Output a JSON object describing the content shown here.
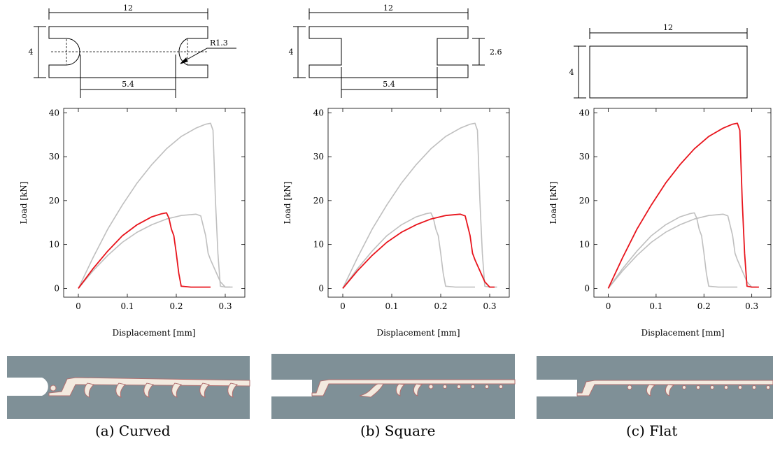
{
  "captions": [
    "(a) Curved",
    "(b) Square",
    "(c) Flat"
  ],
  "specimens": [
    {
      "name": "Curved",
      "dims": {
        "width": "12",
        "height": "4",
        "notch_spacing": "5.4",
        "radius": "R1.3"
      }
    },
    {
      "name": "Square",
      "dims": {
        "width": "12",
        "height": "4",
        "notch_spacing": "5.4",
        "notch_height": "2.6"
      }
    },
    {
      "name": "Flat",
      "dims": {
        "width": "12",
        "height": "4"
      }
    }
  ],
  "colors": {
    "highlight": "#e8141c",
    "other": "#bfbfbf",
    "specimen_fill": "#7f9097",
    "crack": "#f3eadf",
    "crack_edge": "#b07070"
  },
  "chart_data": [
    {
      "type": "line",
      "xlabel": "Displacement [mm]",
      "ylabel": "Load [kN]",
      "xlim": [
        -0.03,
        0.34
      ],
      "ylim": [
        -2,
        41
      ],
      "xticks": [
        0,
        0.1,
        0.2,
        0.3
      ],
      "xtick_labels": [
        "0",
        "0.1",
        "0.2",
        "0.3"
      ],
      "yticks": [
        0,
        10,
        20,
        30,
        40
      ],
      "ytick_labels": [
        "0",
        "10",
        "20",
        "30",
        "40"
      ],
      "highlight": 0,
      "series": [
        {
          "x": [
            0,
            0.03,
            0.06,
            0.09,
            0.12,
            0.15,
            0.17,
            0.18,
            0.185,
            0.19,
            0.195,
            0.2,
            0.205,
            0.21,
            0.23,
            0.27
          ],
          "y": [
            0,
            4.5,
            8.5,
            12,
            14.5,
            16.3,
            17,
            17.2,
            16,
            13.5,
            12,
            8,
            3.5,
            0.5,
            0.3,
            0.3
          ]
        },
        {
          "x": [
            0,
            0.03,
            0.06,
            0.09,
            0.12,
            0.15,
            0.18,
            0.21,
            0.24,
            0.25,
            0.26,
            0.265,
            0.27,
            0.28,
            0.29,
            0.3,
            0.31
          ],
          "y": [
            0,
            4,
            7.5,
            10.5,
            12.8,
            14.5,
            15.8,
            16.6,
            16.9,
            16.5,
            12,
            8,
            6.5,
            4,
            1.5,
            0.3,
            0.3
          ]
        },
        {
          "x": [
            0,
            0.03,
            0.06,
            0.09,
            0.12,
            0.15,
            0.18,
            0.21,
            0.24,
            0.26,
            0.27,
            0.275,
            0.28,
            0.285,
            0.29,
            0.3,
            0.315
          ],
          "y": [
            0,
            7,
            13.5,
            19,
            24,
            28.2,
            31.8,
            34.6,
            36.5,
            37.4,
            37.6,
            36,
            20,
            8,
            0.5,
            0.3,
            0.3
          ]
        }
      ]
    },
    {
      "type": "line",
      "xlabel": "Displacement [mm]",
      "ylabel": "Load [kN]",
      "xlim": [
        -0.03,
        0.34
      ],
      "ylim": [
        -2,
        41
      ],
      "xticks": [
        0,
        0.1,
        0.2,
        0.3
      ],
      "xtick_labels": [
        "0",
        "0.1",
        "0.2",
        "0.3"
      ],
      "yticks": [
        0,
        10,
        20,
        30,
        40
      ],
      "ytick_labels": [
        "0",
        "10",
        "20",
        "30",
        "40"
      ],
      "highlight": 1,
      "series": [
        {
          "x": [
            0,
            0.03,
            0.06,
            0.09,
            0.12,
            0.15,
            0.17,
            0.18,
            0.185,
            0.19,
            0.195,
            0.2,
            0.205,
            0.21,
            0.23,
            0.27
          ],
          "y": [
            0,
            4.5,
            8.5,
            12,
            14.5,
            16.3,
            17,
            17.2,
            16,
            13.5,
            12,
            8,
            3.5,
            0.5,
            0.3,
            0.3
          ]
        },
        {
          "x": [
            0,
            0.03,
            0.06,
            0.09,
            0.12,
            0.15,
            0.18,
            0.21,
            0.24,
            0.25,
            0.26,
            0.265,
            0.27,
            0.28,
            0.29,
            0.3,
            0.31
          ],
          "y": [
            0,
            4,
            7.5,
            10.5,
            12.8,
            14.5,
            15.8,
            16.6,
            16.9,
            16.5,
            12,
            8,
            6.5,
            4,
            1.5,
            0.3,
            0.3
          ]
        },
        {
          "x": [
            0,
            0.03,
            0.06,
            0.09,
            0.12,
            0.15,
            0.18,
            0.21,
            0.24,
            0.26,
            0.27,
            0.275,
            0.28,
            0.285,
            0.29,
            0.3,
            0.315
          ],
          "y": [
            0,
            7,
            13.5,
            19,
            24,
            28.2,
            31.8,
            34.6,
            36.5,
            37.4,
            37.6,
            36,
            20,
            8,
            0.5,
            0.3,
            0.3
          ]
        }
      ]
    },
    {
      "type": "line",
      "xlabel": "Displacement [mm]",
      "ylabel": "Load [kN]",
      "xlim": [
        -0.03,
        0.34
      ],
      "ylim": [
        -2,
        41
      ],
      "xticks": [
        0,
        0.1,
        0.2,
        0.3
      ],
      "xtick_labels": [
        "0",
        "0.1",
        "0.2",
        "0.3"
      ],
      "yticks": [
        0,
        10,
        20,
        30,
        40
      ],
      "ytick_labels": [
        "0",
        "10",
        "20",
        "30",
        "40"
      ],
      "highlight": 2,
      "series": [
        {
          "x": [
            0,
            0.03,
            0.06,
            0.09,
            0.12,
            0.15,
            0.17,
            0.18,
            0.185,
            0.19,
            0.195,
            0.2,
            0.205,
            0.21,
            0.23,
            0.27
          ],
          "y": [
            0,
            4.5,
            8.5,
            12,
            14.5,
            16.3,
            17,
            17.2,
            16,
            13.5,
            12,
            8,
            3.5,
            0.5,
            0.3,
            0.3
          ]
        },
        {
          "x": [
            0,
            0.03,
            0.06,
            0.09,
            0.12,
            0.15,
            0.18,
            0.21,
            0.24,
            0.25,
            0.26,
            0.265,
            0.27,
            0.28,
            0.29,
            0.3,
            0.31
          ],
          "y": [
            0,
            4,
            7.5,
            10.5,
            12.8,
            14.5,
            15.8,
            16.6,
            16.9,
            16.5,
            12,
            8,
            6.5,
            4,
            1.5,
            0.3,
            0.3
          ]
        },
        {
          "x": [
            0,
            0.03,
            0.06,
            0.09,
            0.12,
            0.15,
            0.18,
            0.21,
            0.24,
            0.26,
            0.27,
            0.275,
            0.28,
            0.285,
            0.29,
            0.3,
            0.315
          ],
          "y": [
            0,
            7,
            13.5,
            19,
            24,
            28.2,
            31.8,
            34.6,
            36.5,
            37.4,
            37.6,
            36,
            20,
            8,
            0.5,
            0.3,
            0.3
          ]
        }
      ]
    }
  ]
}
